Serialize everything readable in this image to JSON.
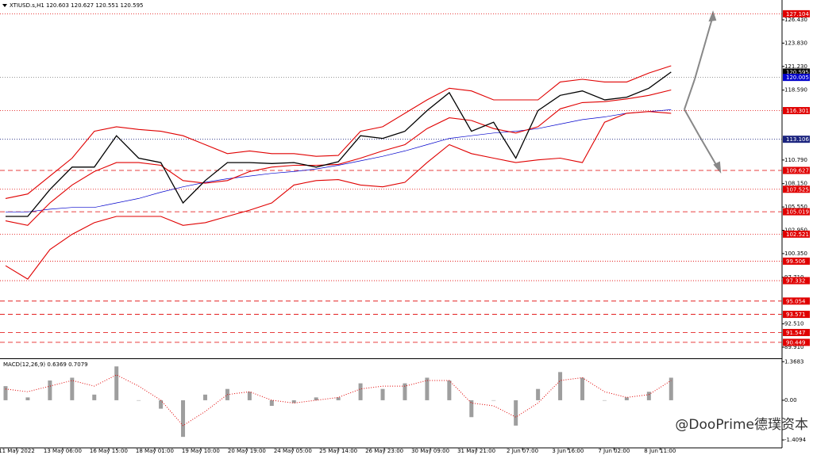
{
  "chart_data": [
    {
      "type": "line",
      "title": "XTIUSD.s,H1  120.603 120.627 120.551 120.595",
      "x": [
        0,
        4,
        8,
        12,
        16,
        20,
        24,
        28,
        32,
        36,
        40,
        44,
        48,
        52,
        56,
        60,
        64,
        68,
        72,
        76,
        80,
        84,
        88,
        92,
        96,
        100,
        104,
        108,
        112,
        116,
        120
      ],
      "xlim": [
        -1,
        140
      ],
      "ylim": [
        88.67,
        128.64
      ],
      "series": [
        {
          "color": "#0000cc",
          "width": 0.7,
          "values": [
            105,
            105,
            105.3,
            105.5,
            105.5,
            106,
            106.5,
            107.2,
            107.8,
            108.3,
            108.7,
            109,
            109.3,
            109.5,
            109.8,
            110.2,
            110.7,
            111.2,
            111.8,
            112.5,
            113.2,
            113.5,
            113.8,
            114,
            114.3,
            114.8,
            115.3,
            115.6,
            116,
            116.2,
            116.4
          ]
        },
        {
          "color": "#e00000",
          "width": 1.1,
          "values": [
            106.5,
            107,
            109,
            111,
            114,
            114.5,
            114.2,
            114,
            113.5,
            112.5,
            111.5,
            111.8,
            111.5,
            111.5,
            111.2,
            111.3,
            114,
            114.5,
            116,
            117.5,
            118.8,
            118.5,
            117.5,
            117.5,
            117.5,
            119.5,
            119.8,
            119.5,
            119.5,
            120.5,
            121.3
          ]
        },
        {
          "color": "#e00000",
          "width": 1.1,
          "values": [
            104,
            103.5,
            106,
            108,
            109.5,
            110.5,
            110.5,
            110.2,
            108.5,
            108.2,
            108.5,
            109.5,
            110,
            110.2,
            110.2,
            110.3,
            111,
            111.8,
            112.5,
            114.3,
            115.5,
            115.2,
            114.3,
            113.8,
            114.5,
            116.5,
            117.2,
            117.3,
            117.6,
            118,
            118.6
          ]
        },
        {
          "color": "#e00000",
          "width": 1.1,
          "values": [
            99,
            97.5,
            100.8,
            102.5,
            103.8,
            104.5,
            104.5,
            104.5,
            103.5,
            103.8,
            104.5,
            105.2,
            106,
            108,
            108.5,
            108.6,
            108,
            107.8,
            108.3,
            110.5,
            112.5,
            111.5,
            111,
            110.5,
            110.8,
            111,
            110.5,
            115,
            116,
            116.2,
            116
          ]
        },
        {
          "color": "#000000",
          "width": 1.3,
          "values": [
            104.5,
            104.5,
            107.5,
            110,
            110,
            113.5,
            111,
            110.5,
            106,
            108.5,
            110.5,
            110.5,
            110.4,
            110.5,
            110,
            110.6,
            113.5,
            113.2,
            114,
            116.3,
            118.3,
            114,
            115,
            111,
            116.3,
            118,
            118.5,
            117.5,
            117.8,
            118.8,
            120.6
          ]
        }
      ],
      "levels": [
        {
          "value": 127.104,
          "color": "#e00000",
          "style": "dotted"
        },
        {
          "value": 120.595,
          "color": "#000000",
          "style": "none"
        },
        {
          "value": 120.005,
          "color": "#0000cc",
          "style": "dotted"
        },
        {
          "value": 116.301,
          "color": "#e00000",
          "style": "dotted"
        },
        {
          "value": 113.106,
          "color": "#1a237e",
          "style": "dotted"
        },
        {
          "value": 109.627,
          "color": "#e00000",
          "style": "dashed"
        },
        {
          "value": 107.525,
          "color": "#e00000",
          "style": "dotted"
        },
        {
          "value": 105.019,
          "color": "#e00000",
          "style": "dashed"
        },
        {
          "value": 102.521,
          "color": "#e00000",
          "style": "dotted"
        },
        {
          "value": 99.506,
          "color": "#e00000",
          "style": "dotted"
        },
        {
          "value": 97.332,
          "color": "#e00000",
          "style": "dotted"
        },
        {
          "value": 95.054,
          "color": "#e00000",
          "style": "dashed"
        },
        {
          "value": 93.571,
          "color": "#e00000",
          "style": "dashed"
        },
        {
          "value": 91.547,
          "color": "#e00000",
          "style": "dashed"
        },
        {
          "value": 90.449,
          "color": "#e00000",
          "style": "dashed"
        }
      ],
      "yticks": [
        {
          "value": 126.43,
          "label": "126.430"
        },
        {
          "value": 123.83,
          "label": "123.830"
        },
        {
          "value": 121.23,
          "label": "121.230"
        },
        {
          "value": 118.59,
          "label": "118.590"
        },
        {
          "value": 110.79,
          "label": "110.790"
        },
        {
          "value": 108.15,
          "label": "108.150"
        },
        {
          "value": 105.55,
          "label": "105.550"
        },
        {
          "value": 102.95,
          "label": "102.950"
        },
        {
          "value": 100.35,
          "label": "100.350"
        },
        {
          "value": 97.71,
          "label": "97.710"
        },
        {
          "value": 92.51,
          "label": "92.510"
        },
        {
          "value": 89.91,
          "label": "89.910"
        }
      ]
    },
    {
      "type": "bar",
      "title": "MACD(12,26,9) 0.6369 0.7079",
      "x": [
        0,
        4,
        8,
        12,
        16,
        20,
        24,
        28,
        32,
        36,
        40,
        44,
        48,
        52,
        56,
        60,
        64,
        68,
        72,
        76,
        80,
        84,
        88,
        92,
        96,
        100,
        104,
        108,
        112,
        116,
        120
      ],
      "xlim": [
        -1,
        140
      ],
      "ylim": [
        -1.69,
        1.46
      ],
      "series": [
        {
          "color": "#9e9e9e",
          "style": "bar",
          "values": [
            0.5,
            0.1,
            0.7,
            0.8,
            0.2,
            1.2,
            0,
            -0.3,
            -1.3,
            0.2,
            0.4,
            0.3,
            -0.2,
            -0.1,
            0.1,
            0.1,
            0.6,
            0.4,
            0.6,
            0.8,
            0.7,
            -0.6,
            0,
            -0.9,
            0.4,
            1,
            0.8,
            0,
            0.1,
            0.3,
            0.8
          ]
        },
        {
          "color": "#e00000",
          "style": "dotted",
          "values": [
            0.4,
            0.3,
            0.5,
            0.7,
            0.5,
            0.9,
            0.5,
            0,
            -0.9,
            -0.4,
            0.2,
            0.3,
            0,
            -0.1,
            0,
            0.1,
            0.4,
            0.5,
            0.5,
            0.7,
            0.7,
            -0.1,
            -0.2,
            -0.6,
            -0.1,
            0.7,
            0.8,
            0.3,
            0.1,
            0.2,
            0.7
          ]
        }
      ],
      "yticks": [
        1.3683,
        {
          "value": 0,
          "label": "0.00"
        },
        -1.4094
      ],
      "xticks": [
        {
          "value": 2,
          "label": "11 May 2022"
        },
        {
          "value": 10.3,
          "label": "13 May 06:00"
        },
        {
          "value": 18.6,
          "label": "16 May 15:00"
        },
        {
          "value": 26.9,
          "label": "18 May 01:00"
        },
        {
          "value": 35.2,
          "label": "19 May 10:00"
        },
        {
          "value": 43.5,
          "label": "20 May 19:00"
        },
        {
          "value": 51.8,
          "label": "24 May 05:00"
        },
        {
          "value": 60,
          "label": "25 May 14:00"
        },
        {
          "value": 68.3,
          "label": "26 May 23:00"
        },
        {
          "value": 76.6,
          "label": "30 May 09:00"
        },
        {
          "value": 84.9,
          "label": "31 May 21:00"
        },
        {
          "value": 93.2,
          "label": "2 Jun 07:00"
        },
        {
          "value": 101.4,
          "label": "3 Jun 16:00"
        },
        {
          "value": 109.7,
          "label": "7 Jun 02:00"
        },
        {
          "value": 118,
          "label": "8 Jun 11:00"
        }
      ]
    }
  ],
  "watermark": "@DooPrime德璞资本"
}
